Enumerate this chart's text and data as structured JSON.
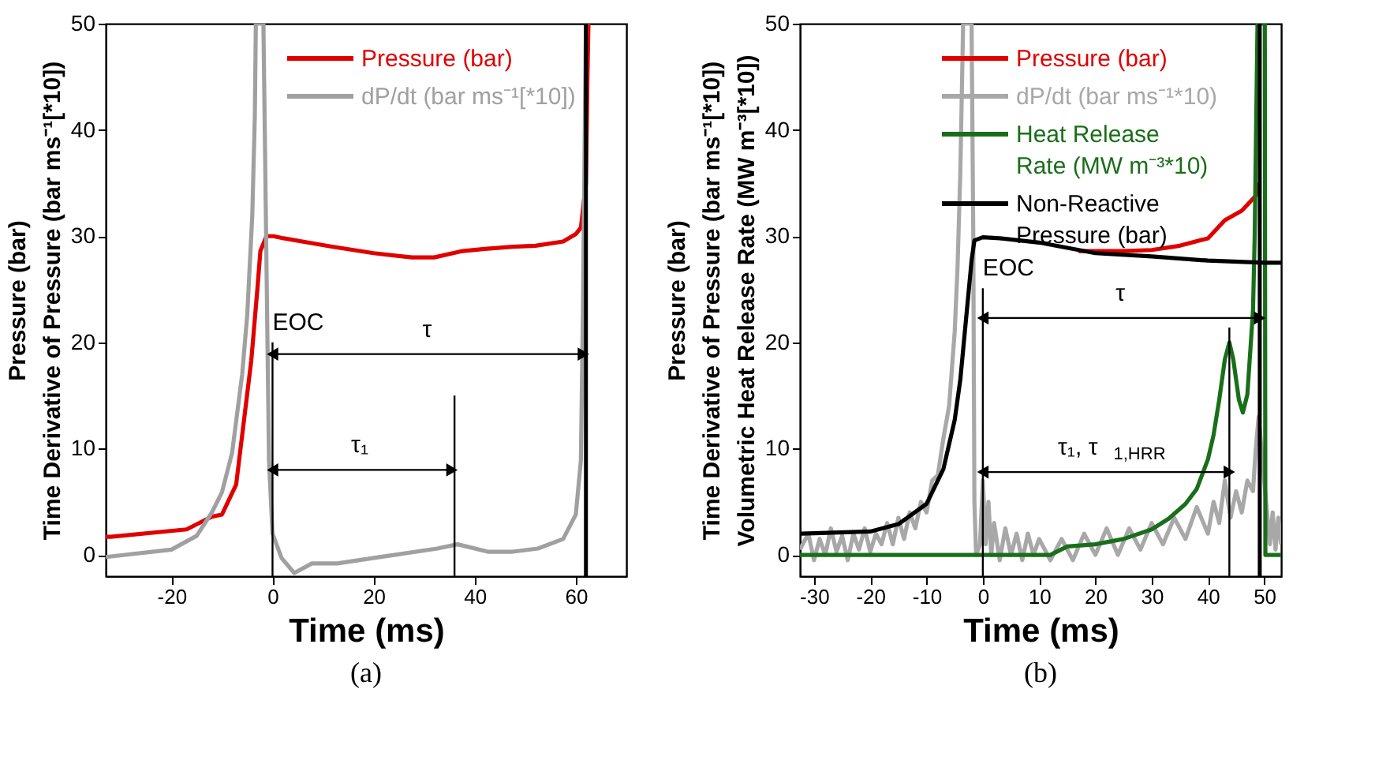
{
  "chart_data": [
    {
      "type": "line",
      "title": "(a)",
      "xlabel": "Time (ms)",
      "ylabel": "Pressure (bar)\nTime Derivative of Pressure (bar ms⁻¹[*10])",
      "xlim": [
        -33,
        70
      ],
      "xticks": [
        -20,
        0,
        20,
        40,
        60
      ],
      "ylim": [
        -2,
        50
      ],
      "yticks": [
        0,
        10,
        20,
        30,
        40,
        50
      ],
      "legend": "top right",
      "series": [
        {
          "name": "Pressure (bar)",
          "color": "#e00000",
          "x": [
            -33,
            -32,
            -17,
            -12,
            -10,
            -7.2,
            -4.2,
            -3,
            -2.4,
            -1.2,
            0.2,
            2.2,
            7,
            12,
            20,
            27.6,
            32,
            37.6,
            42,
            47.5,
            52,
            57.5,
            60,
            61,
            62,
            62.3,
            62.5
          ],
          "values": [
            1.7,
            1.7,
            2.4,
            3.6,
            3.8,
            6.6,
            18.3,
            25,
            28.6,
            30,
            30,
            29.8,
            29.4,
            29.0,
            28.4,
            28.0,
            28.0,
            28.6,
            28.8,
            29.0,
            29.1,
            29.5,
            30.2,
            30.8,
            35,
            45,
            50
          ]
        },
        {
          "name": "dP/dt (bar ms⁻¹[*10])",
          "color": "#a0a0a0",
          "x": [
            -33,
            -20,
            -15,
            -12,
            -10,
            -8,
            -6,
            -5,
            -4,
            -3.5,
            -3.3,
            -1.8,
            -1.2,
            -0.7,
            0,
            1.8,
            4.3,
            7.8,
            12.8,
            22.7,
            32.6,
            36.6,
            42.6,
            47.5,
            52.5,
            57.5,
            60,
            61,
            61.4,
            62
          ],
          "values": [
            -0.2,
            0.5,
            1.8,
            4.0,
            5.9,
            9.6,
            17,
            22.6,
            32,
            41.3,
            50,
            50,
            27.6,
            8.9,
            2,
            -0.3,
            -1.7,
            -0.8,
            -0.8,
            -0.1,
            0.6,
            1.0,
            0.3,
            0.3,
            0.6,
            1.5,
            3.8,
            8.9,
            22.8,
            50
          ]
        },
        {
          "name": "EOC",
          "color": "#000000",
          "x": [
            0,
            0
          ],
          "values": [
            -2,
            20
          ]
        },
        {
          "color": "#000000",
          "x": [
            36,
            36
          ],
          "values": [
            -2,
            15
          ]
        },
        {
          "name": "τ",
          "color": "#000000",
          "x": [
            0,
            61.5
          ],
          "values": [
            18.9,
            18.9
          ],
          "marker": "triangle"
        },
        {
          "name": "τ₁",
          "color": "#000000",
          "x": [
            0,
            35.5
          ],
          "values": [
            8.0,
            8.0
          ],
          "marker": "triangle"
        }
      ],
      "ref_lines": [
        {
          "axis": "x",
          "value": 62,
          "color": "#000000"
        }
      ]
    },
    {
      "type": "line",
      "title": "(b)",
      "xlabel": "Time (ms)",
      "ylabel": "Pressure (bar)\nTime Derivative of Pressure (bar ms⁻¹[*10])\nVolumetric Heat Release Rate (MW m⁻³[*10])",
      "xlim": [
        -32.5,
        53
      ],
      "xticks": [
        -30,
        -20,
        -10,
        0,
        10,
        20,
        30,
        40,
        50
      ],
      "ylim": [
        -2,
        50
      ],
      "yticks": [
        0,
        10,
        20,
        30,
        40,
        50
      ],
      "legend": "top right",
      "series": [
        {
          "name": "Pressure (bar)",
          "color": "#e00000",
          "x": [
            17,
            20,
            25,
            30,
            35,
            40,
            43,
            46,
            48.5,
            49
          ],
          "values": [
            28.6,
            28.6,
            28.6,
            28.7,
            29.1,
            29.8,
            31.5,
            32.4,
            33.8,
            35
          ]
        },
        {
          "name": "dP/dt (bar ms⁻¹*10)",
          "color": "#a8a8a8",
          "x": [
            -32.5,
            -31,
            -30,
            -29,
            -28,
            -27,
            -26,
            -25,
            -24,
            -23,
            -22,
            -21,
            -20,
            -19,
            -18,
            -17,
            -16,
            -15,
            -14,
            -13,
            -12,
            -11,
            -10,
            -9,
            -8,
            -7,
            -6,
            -5,
            -4.5,
            -4,
            -3.5,
            -2,
            -1.7,
            -1.5,
            -1.2,
            -0.5,
            0,
            0.5,
            1,
            1.5,
            2,
            3,
            4,
            5,
            6,
            7,
            8,
            9,
            10,
            12,
            14,
            16,
            18,
            20,
            22,
            24,
            26,
            28,
            30,
            32,
            34,
            36,
            38,
            40,
            41,
            42,
            43,
            44,
            45,
            46,
            47,
            48,
            48.5,
            49,
            50.5,
            51,
            51.5,
            52,
            52.5,
            53
          ],
          "values": [
            0.5,
            2,
            -0.5,
            1.5,
            0,
            2.5,
            0.3,
            1.8,
            -0.5,
            2,
            0.5,
            2.5,
            0.3,
            2,
            1,
            3,
            1,
            3.5,
            1.5,
            4,
            2.5,
            5,
            4,
            7,
            7.5,
            11,
            14,
            21,
            27,
            36,
            50,
            50,
            30,
            5,
            0,
            1,
            7,
            1,
            5,
            0,
            3,
            -0.5,
            2.5,
            0,
            2,
            -0.5,
            2,
            0,
            1.5,
            -0.5,
            1.5,
            -0.5,
            2,
            0,
            2.5,
            0,
            2.5,
            0.5,
            3,
            1,
            3.5,
            1.5,
            4.5,
            2,
            5,
            3,
            7,
            3.5,
            6,
            4,
            7,
            6,
            10,
            13,
            4,
            1,
            4,
            0.5,
            3.5,
            1
          ]
        },
        {
          "name": "Heat Release Rate (MW m⁻³*10)",
          "color": "#1a6e1a",
          "x": [
            -32.5,
            12,
            15,
            20,
            25,
            30,
            33,
            36,
            38,
            40,
            41,
            42,
            43,
            43.8,
            44.5,
            45.5,
            46.2,
            47,
            48,
            48.3,
            48.8,
            50.1,
            50.2,
            53
          ],
          "values": [
            0,
            0,
            0.8,
            1.0,
            1.5,
            2.4,
            3.4,
            4.8,
            6.2,
            9.0,
            11.3,
            14.6,
            18.4,
            20.0,
            18.4,
            14.6,
            13.4,
            15.1,
            23.0,
            30,
            50,
            50,
            0,
            0
          ]
        },
        {
          "name": "Non-Reactive Pressure (bar)",
          "color": "#000000",
          "x": [
            -32.5,
            -20,
            -15,
            -10,
            -7,
            -5,
            -4,
            -3,
            -2,
            -1.5,
            0,
            3,
            10,
            20,
            30,
            40,
            50,
            53
          ],
          "values": [
            2.0,
            2.2,
            2.9,
            4.8,
            8.1,
            12.7,
            16.5,
            22.1,
            27.7,
            29.6,
            29.9,
            29.8,
            29.4,
            28.4,
            28.1,
            27.7,
            27.5,
            27.5
          ]
        },
        {
          "name": "EOC",
          "color": "#000000",
          "x": [
            0,
            0
          ],
          "values": [
            -2,
            25.1
          ]
        },
        {
          "color": "#000000",
          "x": [
            43.8,
            43.8
          ],
          "values": [
            -2,
            21.4
          ]
        },
        {
          "name": "τ",
          "color": "#000000",
          "x": [
            0,
            49.2
          ],
          "values": [
            22.3,
            22.3
          ],
          "marker": "triangle"
        },
        {
          "name": "τ₁, τ$_{1,HRR}$",
          "color": "#000000",
          "x": [
            0,
            43.8
          ],
          "values": [
            7.8,
            7.8
          ],
          "marker": "triangle"
        }
      ],
      "ref_lines": [
        {
          "axis": "x",
          "value": 49.2,
          "color": "#000000"
        }
      ]
    }
  ]
}
